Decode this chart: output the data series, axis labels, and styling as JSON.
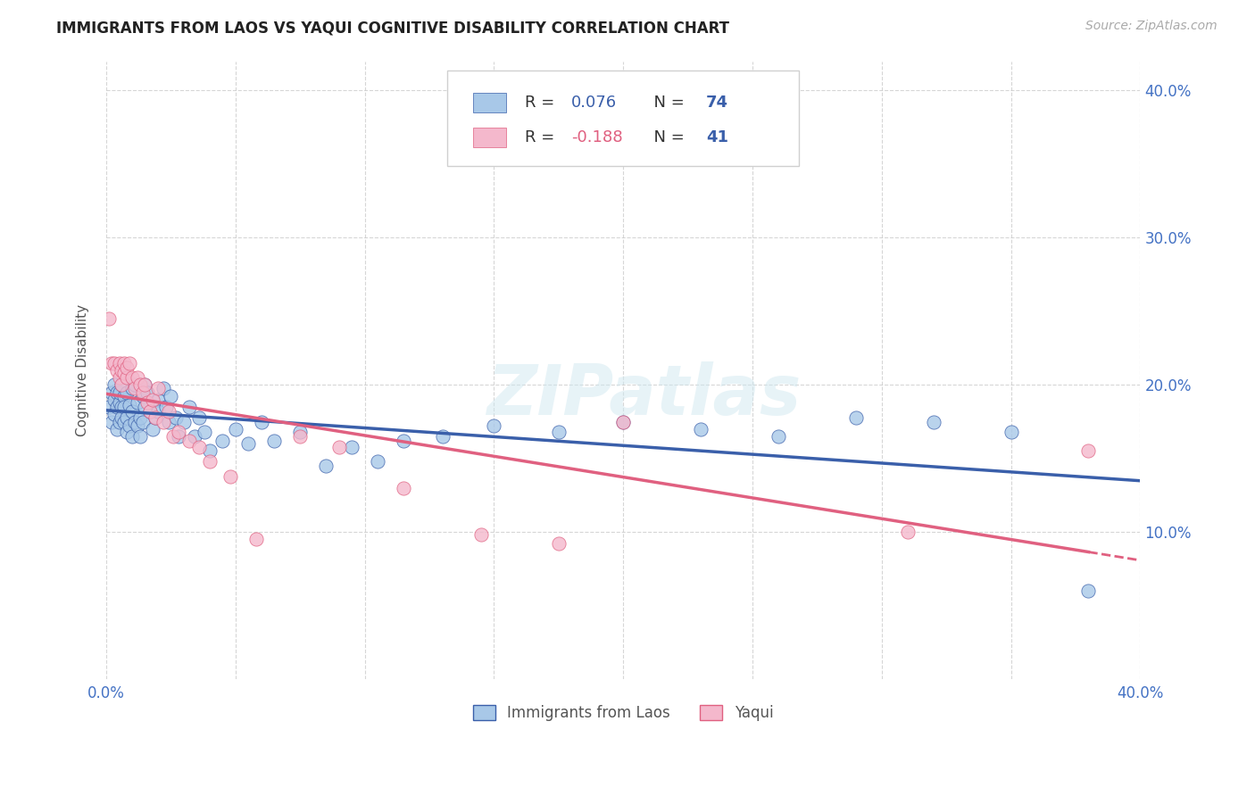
{
  "title": "IMMIGRANTS FROM LAOS VS YAQUI COGNITIVE DISABILITY CORRELATION CHART",
  "source": "Source: ZipAtlas.com",
  "ylabel": "Cognitive Disability",
  "xlim": [
    0.0,
    0.4
  ],
  "ylim": [
    0.0,
    0.42
  ],
  "color_laos": "#a8c8e8",
  "color_yaqui": "#f4b8cc",
  "line_color_laos": "#3a5faa",
  "line_color_yaqui": "#e06080",
  "R_laos": 0.076,
  "N_laos": 74,
  "R_yaqui": -0.188,
  "N_yaqui": 41,
  "watermark": "ZIPatlas",
  "background_color": "#ffffff",
  "laos_x": [
    0.001,
    0.002,
    0.002,
    0.003,
    0.003,
    0.003,
    0.004,
    0.004,
    0.004,
    0.005,
    0.005,
    0.005,
    0.006,
    0.006,
    0.006,
    0.007,
    0.007,
    0.007,
    0.008,
    0.008,
    0.008,
    0.009,
    0.009,
    0.01,
    0.01,
    0.01,
    0.011,
    0.011,
    0.012,
    0.012,
    0.013,
    0.013,
    0.014,
    0.014,
    0.015,
    0.015,
    0.016,
    0.017,
    0.018,
    0.019,
    0.02,
    0.02,
    0.022,
    0.023,
    0.024,
    0.025,
    0.027,
    0.028,
    0.03,
    0.032,
    0.034,
    0.036,
    0.038,
    0.04,
    0.045,
    0.05,
    0.055,
    0.06,
    0.065,
    0.075,
    0.085,
    0.095,
    0.105,
    0.115,
    0.13,
    0.15,
    0.175,
    0.2,
    0.23,
    0.26,
    0.29,
    0.32,
    0.35,
    0.38
  ],
  "laos_y": [
    0.185,
    0.195,
    0.175,
    0.19,
    0.18,
    0.2,
    0.185,
    0.195,
    0.17,
    0.188,
    0.175,
    0.195,
    0.185,
    0.2,
    0.178,
    0.192,
    0.175,
    0.185,
    0.168,
    0.195,
    0.178,
    0.186,
    0.172,
    0.198,
    0.165,
    0.182,
    0.175,
    0.2,
    0.188,
    0.172,
    0.165,
    0.178,
    0.192,
    0.175,
    0.2,
    0.185,
    0.195,
    0.182,
    0.17,
    0.178,
    0.19,
    0.182,
    0.198,
    0.185,
    0.175,
    0.192,
    0.178,
    0.165,
    0.175,
    0.185,
    0.165,
    0.178,
    0.168,
    0.155,
    0.162,
    0.17,
    0.16,
    0.175,
    0.162,
    0.168,
    0.145,
    0.158,
    0.148,
    0.162,
    0.165,
    0.172,
    0.168,
    0.175,
    0.17,
    0.165,
    0.178,
    0.175,
    0.168,
    0.06
  ],
  "yaqui_x": [
    0.001,
    0.002,
    0.003,
    0.004,
    0.005,
    0.005,
    0.006,
    0.006,
    0.007,
    0.007,
    0.008,
    0.008,
    0.009,
    0.01,
    0.011,
    0.012,
    0.013,
    0.014,
    0.015,
    0.016,
    0.017,
    0.018,
    0.019,
    0.02,
    0.022,
    0.024,
    0.026,
    0.028,
    0.032,
    0.036,
    0.04,
    0.048,
    0.058,
    0.075,
    0.09,
    0.115,
    0.145,
    0.175,
    0.2,
    0.31,
    0.38
  ],
  "yaqui_y": [
    0.245,
    0.215,
    0.215,
    0.21,
    0.205,
    0.215,
    0.2,
    0.21,
    0.215,
    0.208,
    0.205,
    0.212,
    0.215,
    0.205,
    0.198,
    0.205,
    0.2,
    0.195,
    0.2,
    0.188,
    0.182,
    0.19,
    0.178,
    0.198,
    0.175,
    0.182,
    0.165,
    0.168,
    0.162,
    0.158,
    0.148,
    0.138,
    0.095,
    0.165,
    0.158,
    0.13,
    0.098,
    0.092,
    0.175,
    0.1,
    0.155
  ]
}
